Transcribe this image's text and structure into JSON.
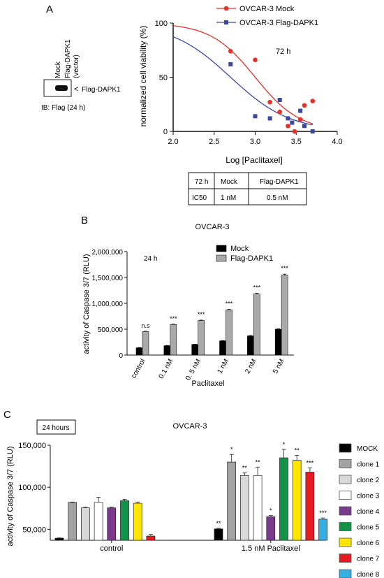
{
  "panels": {
    "a_letter": "A",
    "b_letter": "B",
    "c_letter": "C"
  },
  "blot": {
    "lane_labels": [
      "Mock",
      "Flag-DAPK1"
    ],
    "lane_sublabel": "(vector)",
    "band_label": "Flag-DAPK1",
    "band_arrow": "<",
    "ib_label": "IB: Flag (24 h)"
  },
  "ic50_table": {
    "header": [
      "72 h",
      "Mock",
      "Flag-DAPK1"
    ],
    "row": [
      "IC50",
      "1 nM",
      "0.5 nM"
    ]
  },
  "chart_data": [
    {
      "id": "A",
      "type": "scatter",
      "annotation": "72 h",
      "xlabel": "Log [Paclitaxel]",
      "ylabel": "normalized cell viability (%)",
      "xlim": [
        2.0,
        4.0
      ],
      "ylim": [
        0,
        100
      ],
      "xticks": [
        "2.0",
        "2.5",
        "3.0",
        "3.5",
        "4.0"
      ],
      "yticks": [
        "0",
        "50",
        "100"
      ],
      "legend_position": "top",
      "series": [
        {
          "name": "OVCAR-3 Mock",
          "color": "#e8302a",
          "marker": "circle",
          "x": [
            2.7,
            3.0,
            3.18,
            3.3,
            3.4,
            3.48,
            3.55,
            3.6,
            3.7
          ],
          "y": [
            74,
            66,
            27,
            18,
            5,
            0,
            11,
            24,
            28
          ],
          "fit": {
            "top": 100,
            "bottom": 0,
            "logIC50": 3.0,
            "hill": 1.6
          }
        },
        {
          "name": "OVCAR-3 Flag-DAPK1",
          "color": "#3a49a0",
          "marker": "square",
          "x": [
            2.7,
            3.0,
            3.18,
            3.3,
            3.4,
            3.45,
            3.55,
            3.6,
            3.7
          ],
          "y": [
            62,
            14,
            12,
            29,
            12,
            8,
            19,
            5,
            0
          ],
          "fit": {
            "top": 100,
            "bottom": 0,
            "logIC50": 2.7,
            "hill": 1.2
          }
        }
      ]
    },
    {
      "id": "B",
      "type": "bar",
      "title": "OVCAR-3",
      "annotation": "24 h",
      "xlabel": "Paclitaxel",
      "ylabel": "activity of Caspase 3/7 (RLU)",
      "ylim": [
        0,
        2000000
      ],
      "yticks": [
        "0",
        "500,000",
        "1,000,000",
        "1,500,000",
        "2,000,000"
      ],
      "categories": [
        "control",
        "0.1 nM",
        "0. 5 nM",
        "1 nM",
        "2 nM",
        "5 nM"
      ],
      "legend_position": "top-right",
      "series": [
        {
          "name": "Mock",
          "color": "#000000",
          "values": [
            140000,
            180000,
            205000,
            275000,
            370000,
            500000
          ],
          "errors": [
            5000,
            5000,
            5000,
            5000,
            8000,
            8000
          ]
        },
        {
          "name": "Flag-DAPK1",
          "color": "#a9a9a9",
          "values": [
            455000,
            590000,
            670000,
            875000,
            1180000,
            1545000
          ],
          "errors": [
            6000,
            7000,
            7000,
            8000,
            15000,
            20000
          ]
        }
      ],
      "significance": [
        "n.s",
        "***",
        "***",
        "***",
        "***",
        "***"
      ]
    },
    {
      "id": "C",
      "type": "bar",
      "title": "OVCAR-3",
      "annotation": "24 hours",
      "xlabel": "",
      "ylabel": "activity of Caspase 3/7 (RLU)",
      "ylim": [
        37000,
        150000
      ],
      "yticks": [
        "50,000",
        "100,000",
        "150,000"
      ],
      "categories": [
        "control",
        "1.5 nM Paclitaxel"
      ],
      "legend_position": "right",
      "series": [
        {
          "name": "MOCK",
          "color": "#000000",
          "values": [
            39500,
            50500
          ],
          "errors": [
            300,
            800
          ],
          "sig": [
            "",
            "**"
          ]
        },
        {
          "name": "clone 1",
          "color": "#a3a3a3",
          "values": [
            82000,
            130000
          ],
          "errors": [
            500,
            9000
          ],
          "sig": [
            "",
            "*"
          ]
        },
        {
          "name": "clone 2",
          "color": "#d9d9d9",
          "values": [
            75500,
            114000
          ],
          "errors": [
            800,
            3000
          ],
          "sig": [
            "",
            "**"
          ]
        },
        {
          "name": "clone 3",
          "color": "#ffffff",
          "values": [
            82000,
            114000
          ],
          "errors": [
            6000,
            10000
          ],
          "sig": [
            "",
            "**"
          ]
        },
        {
          "name": "clone 4",
          "color": "#7a3a8c",
          "values": [
            75500,
            65000
          ],
          "errors": [
            1000,
            1500
          ],
          "sig": [
            "",
            "*"
          ]
        },
        {
          "name": "clone 5",
          "color": "#119447",
          "values": [
            84000,
            135000
          ],
          "errors": [
            1500,
            10000
          ],
          "sig": [
            "",
            "*"
          ]
        },
        {
          "name": "clone 6",
          "color": "#ffe600",
          "values": [
            81000,
            132000
          ],
          "errors": [
            1500,
            6000
          ],
          "sig": [
            "",
            "**"
          ]
        },
        {
          "name": "clone 7",
          "color": "#e51b24",
          "values": [
            42000,
            118000
          ],
          "errors": [
            2000,
            5000
          ],
          "sig": [
            "",
            "***"
          ]
        },
        {
          "name": "clone 8",
          "color": "#35aee2",
          "values": [
            30000,
            62000
          ],
          "errors": [
            1000,
            1500
          ],
          "sig": [
            "",
            "***"
          ]
        }
      ]
    }
  ]
}
